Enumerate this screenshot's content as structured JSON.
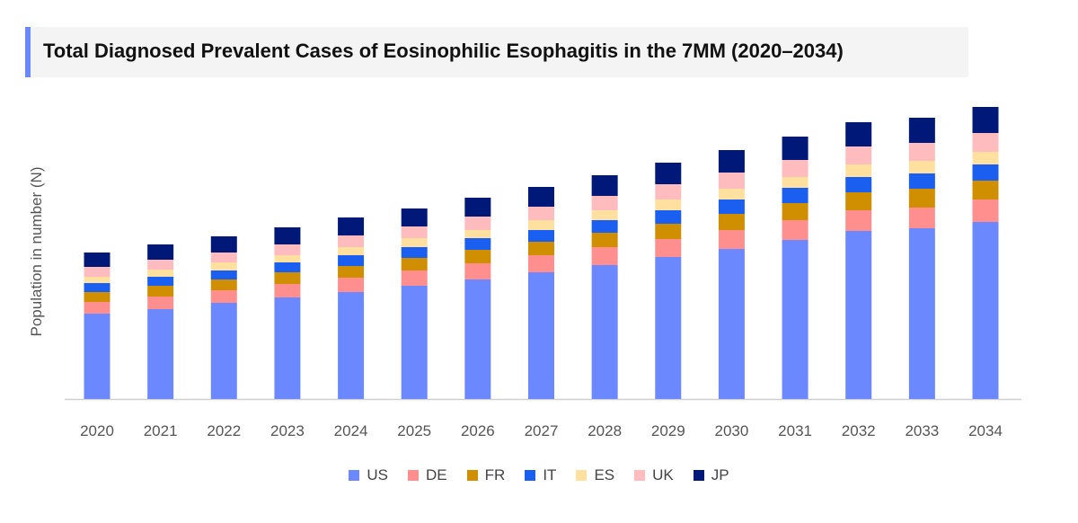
{
  "chart_data": {
    "type": "bar",
    "stacked": true,
    "title": "Total Diagnosed Prevalent Cases of Eosinophilic Esophagitis in the 7MM (2020–2034)",
    "xlabel": "",
    "ylabel": "Population in number (N)",
    "ylim": [
      0,
      330
    ],
    "value_note_hidden": true,
    "grid": false,
    "legend_position": "bottom",
    "categories": [
      "2020",
      "2021",
      "2022",
      "2023",
      "2024",
      "2025",
      "2026",
      "2027",
      "2028",
      "2029",
      "2030",
      "2031",
      "2032",
      "2033",
      "2034"
    ],
    "series": [
      {
        "name": "US",
        "color": "#6b88ff",
        "values": [
          95,
          100,
          107,
          113,
          119,
          126,
          133,
          141,
          149,
          158,
          167,
          177,
          187,
          190,
          197
        ]
      },
      {
        "name": "DE",
        "color": "#ff8f8f",
        "values": [
          13,
          14,
          14,
          15,
          16,
          17,
          18,
          19,
          20,
          20,
          21,
          22,
          23,
          23,
          25
        ]
      },
      {
        "name": "FR",
        "color": "#d08f00",
        "values": [
          11,
          12,
          12,
          13,
          13,
          14,
          15,
          15,
          16,
          17,
          18,
          19,
          20,
          21,
          21
        ]
      },
      {
        "name": "IT",
        "color": "#1a5ff0",
        "values": [
          10,
          10,
          10,
          11,
          12,
          12,
          13,
          13,
          14,
          15,
          16,
          17,
          17,
          17,
          18
        ]
      },
      {
        "name": "ES",
        "color": "#ffe09e",
        "values": [
          7,
          8,
          9,
          8,
          9,
          10,
          9,
          11,
          11,
          12,
          12,
          12,
          14,
          14,
          14
        ]
      },
      {
        "name": "UK",
        "color": "#ffbcbf",
        "values": [
          11,
          11,
          11,
          12,
          13,
          13,
          15,
          15,
          16,
          17,
          18,
          19,
          20,
          20,
          21
        ]
      },
      {
        "name": "JP",
        "color": "#001878",
        "values": [
          16,
          17,
          18,
          19,
          20,
          20,
          21,
          22,
          23,
          24,
          25,
          26,
          27,
          28,
          29
        ]
      }
    ]
  }
}
